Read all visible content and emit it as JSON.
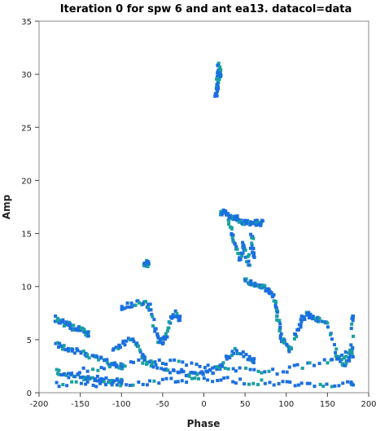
{
  "chart_data": {
    "type": "scatter",
    "title": "Iteration 0 for spw 6 and ant ea13.  datacol=data",
    "xlabel": "Phase",
    "ylabel": "Amp",
    "xlim": [
      -200,
      200
    ],
    "ylim": [
      0,
      35
    ],
    "xticks": [
      -200,
      -150,
      -100,
      -50,
      0,
      50,
      100,
      150,
      200
    ],
    "yticks": [
      0,
      5,
      10,
      15,
      20,
      25,
      30,
      35
    ],
    "grid": false,
    "colors": {
      "primary": "#1a6fe0",
      "secondary": "#1aa0a0"
    },
    "clusters": [
      {
        "name": "upper-spike",
        "points": [
          [
            18,
            31
          ],
          [
            18,
            30
          ],
          [
            17,
            29.5
          ],
          [
            16,
            29
          ],
          [
            16,
            28.5
          ],
          [
            15,
            28
          ],
          [
            19,
            30.5
          ],
          [
            20,
            30
          ]
        ]
      },
      {
        "name": "mid-arc-right",
        "points": [
          [
            20,
            17
          ],
          [
            25,
            17
          ],
          [
            30,
            16.5
          ],
          [
            35,
            16.5
          ],
          [
            40,
            16.5
          ],
          [
            45,
            16.2
          ],
          [
            48,
            16
          ],
          [
            55,
            16
          ],
          [
            60,
            16
          ],
          [
            65,
            16
          ],
          [
            70,
            16
          ]
        ]
      },
      {
        "name": "mid-drop",
        "points": [
          [
            30,
            16
          ],
          [
            35,
            15
          ],
          [
            38,
            14
          ],
          [
            42,
            13
          ],
          [
            45,
            12.5
          ],
          [
            48,
            14
          ],
          [
            50,
            13.5
          ],
          [
            55,
            12
          ],
          [
            58,
            15
          ],
          [
            60,
            13
          ]
        ]
      },
      {
        "name": "isolated",
        "points": [
          [
            -70,
            12.2
          ],
          [
            -72,
            12.2
          ],
          [
            -68,
            12.1
          ]
        ]
      },
      {
        "name": "plateau",
        "points": [
          [
            50,
            10.5
          ],
          [
            55,
            10.4
          ],
          [
            60,
            10.3
          ],
          [
            65,
            10.2
          ],
          [
            70,
            10
          ],
          [
            75,
            9.8
          ],
          [
            80,
            9.5
          ],
          [
            85,
            9
          ],
          [
            88,
            8
          ],
          [
            90,
            7
          ],
          [
            92,
            6
          ],
          [
            95,
            5
          ],
          [
            100,
            4.5
          ],
          [
            105,
            4
          ]
        ]
      },
      {
        "name": "left-band-a",
        "points": [
          [
            -180,
            7
          ],
          [
            -175,
            6.8
          ],
          [
            -170,
            6.6
          ],
          [
            -165,
            6.4
          ],
          [
            -160,
            6.2
          ],
          [
            -155,
            6
          ],
          [
            -150,
            6
          ],
          [
            -145,
            5.8
          ],
          [
            -140,
            5.5
          ]
        ]
      },
      {
        "name": "left-band-b",
        "points": [
          [
            -180,
            4.5
          ],
          [
            -170,
            4.3
          ],
          [
            -160,
            4
          ],
          [
            -150,
            3.8
          ],
          [
            -140,
            3.5
          ],
          [
            -130,
            3.3
          ],
          [
            -120,
            3
          ],
          [
            -110,
            2.8
          ],
          [
            -100,
            2.5
          ]
        ]
      },
      {
        "name": "left-band-c",
        "points": [
          [
            -180,
            2
          ],
          [
            -170,
            1.8
          ],
          [
            -160,
            1.6
          ],
          [
            -150,
            1.5
          ],
          [
            -140,
            1.4
          ],
          [
            -130,
            1.3
          ],
          [
            -120,
            1.2
          ],
          [
            -110,
            1.1
          ],
          [
            -100,
            1
          ]
        ]
      },
      {
        "name": "center-arc",
        "points": [
          [
            -100,
            8
          ],
          [
            -90,
            8.3
          ],
          [
            -80,
            8.5
          ],
          [
            -70,
            8.6
          ],
          [
            -65,
            8
          ],
          [
            -60,
            6
          ],
          [
            -55,
            5
          ],
          [
            -50,
            4.8
          ],
          [
            -45,
            5.5
          ],
          [
            -40,
            7
          ],
          [
            -35,
            7.5
          ],
          [
            -30,
            7
          ]
        ]
      },
      {
        "name": "bottom-row",
        "points": [
          [
            -180,
            0.8
          ],
          [
            -150,
            0.8
          ],
          [
            -120,
            0.8
          ],
          [
            -90,
            0.9
          ],
          [
            -60,
            1
          ],
          [
            -30,
            1.2
          ],
          [
            0,
            1.3
          ],
          [
            30,
            1.2
          ],
          [
            60,
            1
          ],
          [
            90,
            0.9
          ],
          [
            120,
            0.9
          ],
          [
            150,
            0.8
          ],
          [
            180,
            0.8
          ]
        ]
      },
      {
        "name": "lower-arc",
        "points": [
          [
            -150,
            2
          ],
          [
            -120,
            2.5
          ],
          [
            -90,
            2.8
          ],
          [
            -60,
            3
          ],
          [
            -30,
            2.8
          ],
          [
            0,
            2.5
          ],
          [
            30,
            2.2
          ],
          [
            60,
            2
          ],
          [
            90,
            2
          ],
          [
            120,
            2.5
          ],
          [
            150,
            3
          ],
          [
            170,
            3.5
          ],
          [
            180,
            4
          ]
        ]
      },
      {
        "name": "right-cluster",
        "points": [
          [
            110,
            5
          ],
          [
            115,
            6
          ],
          [
            120,
            7
          ],
          [
            125,
            7.5
          ],
          [
            130,
            7.2
          ],
          [
            135,
            7
          ],
          [
            140,
            6.8
          ],
          [
            150,
            6.5
          ],
          [
            160,
            4
          ],
          [
            165,
            3
          ],
          [
            170,
            2.5
          ],
          [
            175,
            3
          ],
          [
            180,
            3.5
          ],
          [
            180,
            7
          ]
        ]
      },
      {
        "name": "mid-low",
        "points": [
          [
            -110,
            4
          ],
          [
            -100,
            4.5
          ],
          [
            -90,
            5
          ],
          [
            -80,
            4.5
          ],
          [
            -75,
            3.5
          ],
          [
            -70,
            3
          ],
          [
            -60,
            2.5
          ],
          [
            -45,
            2.2
          ],
          [
            -30,
            2
          ],
          [
            -20,
            1.8
          ],
          [
            -10,
            1.7
          ],
          [
            0,
            1.8
          ],
          [
            10,
            2
          ],
          [
            20,
            2.5
          ],
          [
            30,
            3.5
          ],
          [
            40,
            4
          ],
          [
            50,
            3.5
          ],
          [
            60,
            3
          ]
        ]
      }
    ]
  }
}
